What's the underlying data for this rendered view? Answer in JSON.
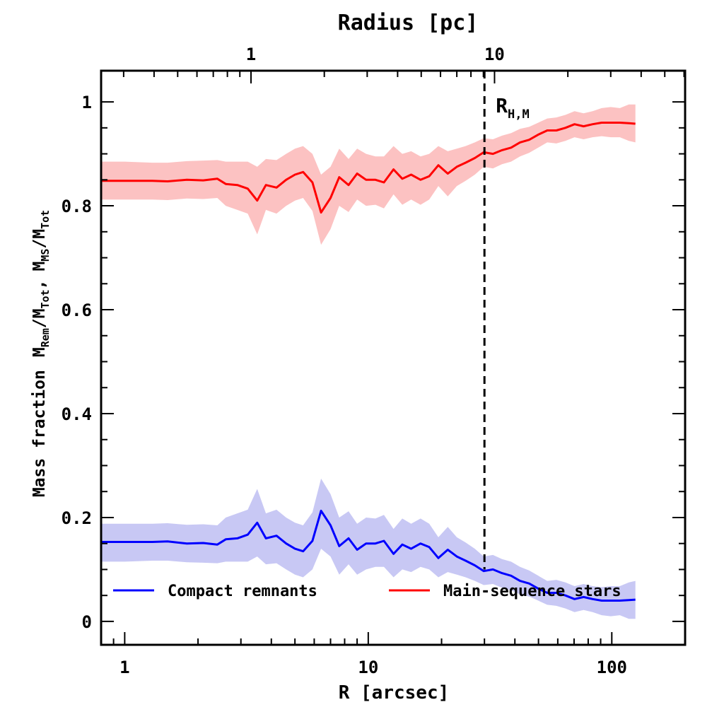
{
  "chart_data": {
    "type": "line",
    "title": "",
    "xlabel": "R [arcsec]",
    "ylabel": "Mass fraction  M_Rem/M_Tot,  M_MS/M_Tot",
    "ylabel_parts": {
      "lead": "Mass fraction",
      "m1": "M",
      "s1": "Rem",
      "d1": "/M",
      "s2": "Tot",
      "comma": ",",
      "m2": "M",
      "s3": "MS",
      "d2": "/M",
      "s4": "Tot"
    },
    "top_xlabel": "Radius [pc]",
    "xscale": "log",
    "xlim": [
      0.8,
      200
    ],
    "ylim": [
      -0.045,
      1.06
    ],
    "x_ticks": [
      {
        "value": 1,
        "label": "1"
      },
      {
        "value": 10,
        "label": "10"
      },
      {
        "value": 100,
        "label": "100"
      }
    ],
    "top_ticks": [
      {
        "pc": 1,
        "arcsec": 3.3,
        "label": "1"
      },
      {
        "pc": 10,
        "arcsec": 33,
        "label": "10"
      }
    ],
    "y_ticks": [
      {
        "value": 0,
        "label": "0"
      },
      {
        "value": 0.2,
        "label": "0.2"
      },
      {
        "value": 0.4,
        "label": "0.4"
      },
      {
        "value": 0.6,
        "label": "0.6"
      },
      {
        "value": 0.8,
        "label": "0.8"
      },
      {
        "value": 1,
        "label": "1"
      }
    ],
    "vline": {
      "x": 30,
      "label": "R",
      "sub": "H,M"
    },
    "legend_position": "bottom",
    "series": [
      {
        "name": "Compact remnants",
        "color": "#0000ff",
        "band_color": "#c8c8f4",
        "x": [
          0.8,
          1.0,
          1.3,
          1.5,
          1.8,
          2.1,
          2.4,
          2.6,
          2.9,
          3.2,
          3.5,
          3.8,
          4.2,
          4.6,
          5.0,
          5.4,
          5.9,
          6.4,
          7.0,
          7.6,
          8.3,
          9.0,
          9.8,
          10.7,
          11.6,
          12.7,
          13.8,
          15.0,
          16.4,
          17.8,
          19.4,
          21.2,
          23.1,
          25.1,
          27.4,
          29.8,
          32.5,
          35.4,
          38.6,
          42.0,
          45.8,
          49.9,
          54.3,
          59.2,
          64.5,
          70.3,
          76.6,
          83.4,
          90.9,
          99.0,
          107.9,
          117.5,
          125.0
        ],
        "y": [
          0.153,
          0.153,
          0.153,
          0.154,
          0.15,
          0.151,
          0.148,
          0.158,
          0.16,
          0.167,
          0.19,
          0.16,
          0.165,
          0.15,
          0.14,
          0.135,
          0.155,
          0.213,
          0.185,
          0.145,
          0.16,
          0.138,
          0.15,
          0.15,
          0.155,
          0.13,
          0.148,
          0.14,
          0.15,
          0.143,
          0.122,
          0.138,
          0.125,
          0.117,
          0.108,
          0.097,
          0.1,
          0.093,
          0.088,
          0.078,
          0.073,
          0.063,
          0.055,
          0.055,
          0.05,
          0.043,
          0.047,
          0.043,
          0.04,
          0.04,
          0.04,
          0.041,
          0.042
        ],
        "lower": [
          0.115,
          0.115,
          0.117,
          0.117,
          0.114,
          0.113,
          0.112,
          0.115,
          0.115,
          0.115,
          0.125,
          0.11,
          0.112,
          0.1,
          0.09,
          0.085,
          0.1,
          0.14,
          0.125,
          0.09,
          0.11,
          0.09,
          0.1,
          0.105,
          0.105,
          0.085,
          0.1,
          0.095,
          0.105,
          0.1,
          0.085,
          0.095,
          0.09,
          0.085,
          0.078,
          0.07,
          0.072,
          0.065,
          0.06,
          0.052,
          0.048,
          0.04,
          0.032,
          0.03,
          0.025,
          0.018,
          0.022,
          0.018,
          0.012,
          0.01,
          0.012,
          0.005,
          0.005
        ],
        "upper": [
          0.188,
          0.188,
          0.188,
          0.189,
          0.186,
          0.187,
          0.185,
          0.2,
          0.208,
          0.215,
          0.255,
          0.208,
          0.215,
          0.2,
          0.19,
          0.185,
          0.21,
          0.275,
          0.245,
          0.2,
          0.212,
          0.188,
          0.2,
          0.198,
          0.205,
          0.178,
          0.198,
          0.188,
          0.198,
          0.188,
          0.162,
          0.182,
          0.162,
          0.152,
          0.14,
          0.125,
          0.128,
          0.12,
          0.115,
          0.105,
          0.098,
          0.088,
          0.078,
          0.08,
          0.075,
          0.068,
          0.072,
          0.068,
          0.066,
          0.068,
          0.068,
          0.075,
          0.078
        ]
      },
      {
        "name": "Main-sequence stars",
        "color": "#ff0000",
        "band_color": "#fcc2c2",
        "x": [
          0.8,
          1.0,
          1.3,
          1.5,
          1.8,
          2.1,
          2.4,
          2.6,
          2.9,
          3.2,
          3.5,
          3.8,
          4.2,
          4.6,
          5.0,
          5.4,
          5.9,
          6.4,
          7.0,
          7.6,
          8.3,
          9.0,
          9.8,
          10.7,
          11.6,
          12.7,
          13.8,
          15.0,
          16.4,
          17.8,
          19.4,
          21.2,
          23.1,
          25.1,
          27.4,
          29.8,
          32.5,
          35.4,
          38.6,
          42.0,
          45.8,
          49.9,
          54.3,
          59.2,
          64.5,
          70.3,
          76.6,
          83.4,
          90.9,
          99.0,
          107.9,
          117.5,
          125.0
        ],
        "y": [
          0.848,
          0.848,
          0.848,
          0.847,
          0.85,
          0.849,
          0.852,
          0.842,
          0.84,
          0.833,
          0.81,
          0.84,
          0.835,
          0.85,
          0.86,
          0.865,
          0.845,
          0.787,
          0.815,
          0.855,
          0.84,
          0.862,
          0.85,
          0.85,
          0.845,
          0.87,
          0.852,
          0.86,
          0.85,
          0.857,
          0.878,
          0.862,
          0.875,
          0.883,
          0.892,
          0.903,
          0.9,
          0.907,
          0.912,
          0.922,
          0.927,
          0.937,
          0.945,
          0.945,
          0.95,
          0.957,
          0.953,
          0.957,
          0.96,
          0.96,
          0.96,
          0.959,
          0.958
        ],
        "lower": [
          0.812,
          0.812,
          0.812,
          0.811,
          0.814,
          0.813,
          0.815,
          0.8,
          0.792,
          0.785,
          0.745,
          0.792,
          0.785,
          0.8,
          0.81,
          0.815,
          0.79,
          0.725,
          0.755,
          0.8,
          0.788,
          0.812,
          0.8,
          0.802,
          0.795,
          0.822,
          0.802,
          0.812,
          0.802,
          0.812,
          0.838,
          0.818,
          0.838,
          0.848,
          0.86,
          0.875,
          0.872,
          0.88,
          0.885,
          0.895,
          0.902,
          0.912,
          0.922,
          0.92,
          0.925,
          0.932,
          0.928,
          0.932,
          0.934,
          0.932,
          0.932,
          0.925,
          0.922
        ],
        "upper": [
          0.885,
          0.885,
          0.883,
          0.883,
          0.886,
          0.887,
          0.888,
          0.885,
          0.885,
          0.885,
          0.875,
          0.89,
          0.888,
          0.9,
          0.91,
          0.915,
          0.9,
          0.86,
          0.875,
          0.91,
          0.89,
          0.91,
          0.9,
          0.895,
          0.895,
          0.915,
          0.9,
          0.905,
          0.895,
          0.9,
          0.915,
          0.905,
          0.91,
          0.915,
          0.922,
          0.93,
          0.928,
          0.935,
          0.94,
          0.948,
          0.952,
          0.96,
          0.968,
          0.97,
          0.975,
          0.982,
          0.978,
          0.982,
          0.988,
          0.99,
          0.988,
          0.995,
          0.995
        ]
      }
    ]
  }
}
